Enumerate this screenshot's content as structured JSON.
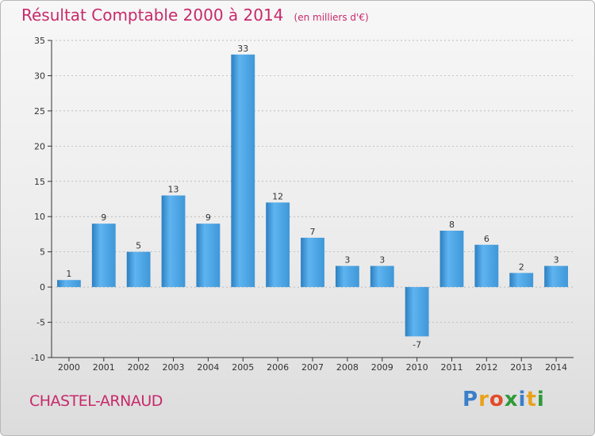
{
  "header": {
    "title": "Résultat Comptable 2000 à 2014",
    "unit": "(en milliers d'€)"
  },
  "footer": {
    "town": "CHASTEL-ARNAUD",
    "logo": [
      "P",
      "r",
      "o",
      "x",
      "i",
      "t",
      "i"
    ],
    "logo_colors": [
      "#3a7fc9",
      "#e8a21a",
      "#e34b2a",
      "#2f9a3a",
      "#3a7fc9",
      "#e8a21a",
      "#2f9a3a"
    ]
  },
  "colors": {
    "accent": "#c72a6b",
    "bar_light": "#5eb4f0",
    "bar_dark": "#2c7fc0",
    "axis": "#333333",
    "grid": "#aaaaaa"
  },
  "chart_data": {
    "type": "bar",
    "title": "Résultat Comptable 2000 à 2014",
    "xlabel": "",
    "ylabel": "",
    "categories": [
      "2000",
      "2001",
      "2002",
      "2003",
      "2004",
      "2005",
      "2006",
      "2007",
      "2008",
      "2009",
      "2010",
      "2011",
      "2012",
      "2013",
      "2014"
    ],
    "values": [
      1,
      9,
      5,
      13,
      9,
      33,
      12,
      7,
      3,
      3,
      -7,
      8,
      6,
      2,
      3
    ],
    "ylim": [
      -10,
      35
    ],
    "yticks": [
      -10,
      -5,
      0,
      5,
      10,
      15,
      20,
      25,
      30,
      35
    ],
    "ytick_labels": [
      "-10",
      "-5",
      "0",
      "5",
      "10",
      "15",
      "20",
      "25",
      "30",
      "35"
    ],
    "grid": true
  }
}
